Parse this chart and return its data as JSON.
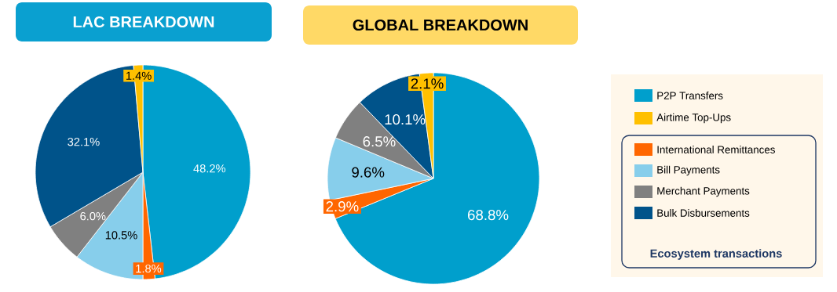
{
  "chart_data": [
    {
      "type": "pie",
      "title": "LAC BREAKDOWN",
      "categories": [
        null,
        null,
        null,
        null,
        null,
        null
      ],
      "values": [
        48.2,
        1.8,
        10.5,
        6.0,
        32.1,
        1.4
      ],
      "value_labels": [
        "48.2%",
        "1.8%",
        "10.5%",
        "6.0%",
        "32.1%",
        "1.4%"
      ],
      "colors": [
        "#009fcc",
        "#ff6600",
        "#87ceeb",
        "#808080",
        "#00538a",
        "#ffc000"
      ],
      "legend": false
    },
    {
      "type": "pie",
      "title": "GLOBAL BREAKDOWN",
      "categories": [
        "P2P Transfers",
        "International Remittances",
        "Bill Payments",
        "Merchant Payments",
        "Bulk Disbursements",
        "Airtime Top-Ups"
      ],
      "values": [
        68.8,
        2.9,
        9.6,
        6.5,
        10.1,
        2.1
      ],
      "value_labels": [
        "68.8%",
        "2.9%",
        "9.6%",
        "6.5%",
        "10.1%",
        "2.1%"
      ],
      "colors": [
        "#009fcc",
        "#ff6600",
        "#87ceeb",
        "#808080",
        "#00538a",
        "#ffc000"
      ],
      "legend": "right",
      "annotations": [
        "Ecosystem transactions"
      ]
    }
  ]
}
